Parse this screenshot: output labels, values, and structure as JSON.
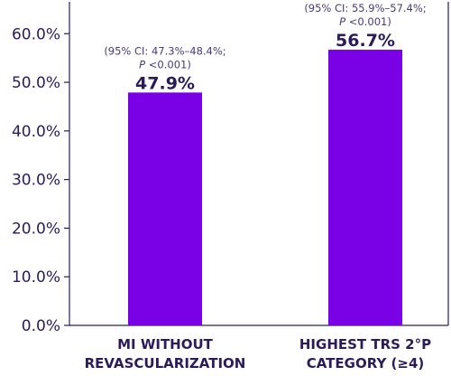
{
  "chart_data": {
    "type": "bar",
    "categories": [
      [
        "MI WITHOUT",
        "REVASCULARIZATION"
      ],
      [
        "HIGHEST TRS 2°P",
        "CATEGORY (≥4)"
      ]
    ],
    "values": [
      47.9,
      56.7
    ],
    "data_labels": [
      "47.9%",
      "56.7%"
    ],
    "annotations": [
      {
        "ci": "(95% CI: 47.3%–48.4%;",
        "p_letter": "P",
        "p_rest": " <0.001)"
      },
      {
        "ci": "(95% CI: 55.9%–57.4%;",
        "p_letter": "P",
        "p_rest": " <0.001)"
      }
    ],
    "y_ticks": [
      "0.0%",
      "10.0%",
      "20.0%",
      "30.0%",
      "40.0%",
      "50.0%",
      "60.0%"
    ],
    "ylim": [
      0,
      66
    ],
    "grid": false,
    "bar_color": "#7a00e6",
    "title": "",
    "xlabel": "",
    "ylabel": ""
  }
}
